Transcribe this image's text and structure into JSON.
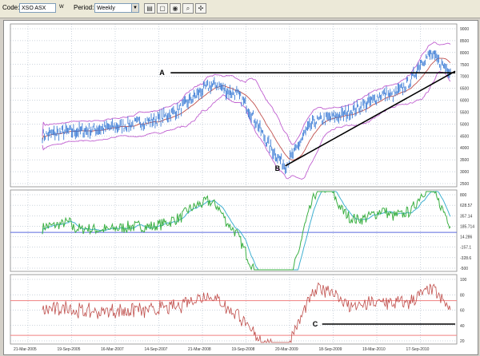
{
  "toolbar": {
    "code_label": "Code:",
    "code_value": "XSO ASX",
    "period_label": "Period:",
    "period_value": "Weekly",
    "buttons": [
      "chart-icon",
      "page-icon",
      "color-icon",
      "zoom-icon",
      "tools-icon"
    ]
  },
  "chart_data": [
    {
      "type": "line",
      "panel": "price",
      "series": [
        {
          "role": "price",
          "color": "#3a7bd5"
        },
        {
          "role": "moving-average",
          "color": "#c0504d"
        },
        {
          "role": "bollinger-upper",
          "color": "#c060d0"
        },
        {
          "role": "bollinger-lower",
          "color": "#c060d0"
        }
      ],
      "points": [
        [
          0,
          4200
        ],
        [
          10,
          4350
        ],
        [
          20,
          4400
        ],
        [
          30,
          4500
        ],
        [
          40,
          4600
        ],
        [
          50,
          4750
        ],
        [
          60,
          4900
        ],
        [
          70,
          5300
        ],
        [
          80,
          6000
        ],
        [
          85,
          6300
        ],
        [
          90,
          6400
        ],
        [
          95,
          6100
        ],
        [
          100,
          6000
        ],
        [
          105,
          5500
        ],
        [
          110,
          4800
        ],
        [
          115,
          4000
        ],
        [
          120,
          3400
        ],
        [
          125,
          2900
        ],
        [
          130,
          3500
        ],
        [
          135,
          4300
        ],
        [
          140,
          4800
        ],
        [
          145,
          4900
        ],
        [
          150,
          5000
        ],
        [
          155,
          5100
        ],
        [
          160,
          5300
        ],
        [
          165,
          5500
        ],
        [
          170,
          5700
        ],
        [
          175,
          6000
        ],
        [
          180,
          5900
        ],
        [
          185,
          6200
        ],
        [
          190,
          6600
        ],
        [
          195,
          7400
        ],
        [
          200,
          7700
        ],
        [
          205,
          7300
        ],
        [
          210,
          7000
        ]
      ],
      "ylim": [
        2000,
        9000
      ],
      "y_ticks": [
        "9000",
        "8500",
        "8000",
        "7500",
        "7000",
        "6500",
        "6000",
        "5500",
        "5000",
        "4500",
        "4000",
        "3500",
        "3000",
        "2500"
      ],
      "annotations": [
        {
          "label": "A",
          "type": "horizontal-resistance",
          "y": 6900
        },
        {
          "label": "B",
          "type": "rising-trendline-start",
          "y": 2900
        }
      ]
    },
    {
      "type": "line",
      "panel": "oscillator",
      "series": [
        {
          "role": "oscillator",
          "color": "#3cb043"
        },
        {
          "role": "signal",
          "color": "#40b0d0"
        }
      ],
      "ylim": [
        -800,
        900
      ],
      "y_ticks": [
        "800",
        "628.57",
        "357.14",
        "185.714",
        "14.286",
        "-157.1",
        "-328.6",
        "-500"
      ],
      "baseline": 14.286
    },
    {
      "type": "line",
      "panel": "rsi",
      "series": [
        {
          "role": "rsi",
          "color": "#c0504d"
        }
      ],
      "ylim": [
        20,
        100
      ],
      "y_ticks": [
        "100",
        "80",
        "60",
        "40",
        "20"
      ],
      "bands": [
        70,
        30
      ],
      "annotations": [
        {
          "label": "C",
          "type": "horizontal-support",
          "y": 43
        }
      ]
    }
  ],
  "x_axis": {
    "tick_labels": [
      "21-Mar-2005",
      "19-Sep-2005",
      "16-Mar-2007",
      "14-Sep-2007",
      "21-Mar-2008",
      "19-Sep-2008",
      "20-Mar-2009",
      "18-Sep-2009",
      "19-Mar-2010",
      "17-Sep-2010"
    ]
  }
}
